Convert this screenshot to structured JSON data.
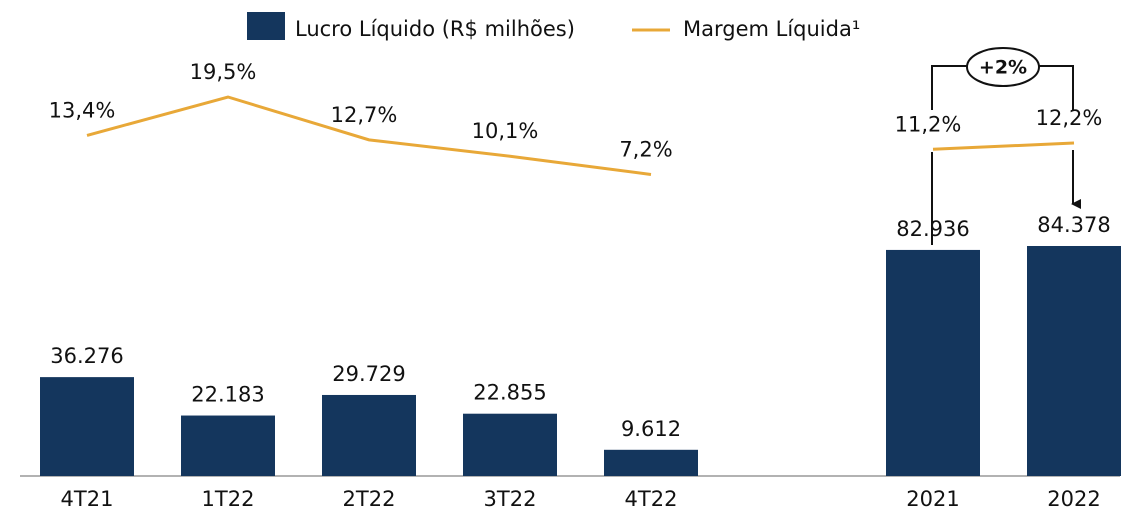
{
  "chart_data": {
    "type": "bar_line",
    "categories": [
      "4T21",
      "1T22",
      "2T22",
      "3T22",
      "4T22",
      null,
      "2021",
      "2022"
    ],
    "series": [
      {
        "name": "Lucro Líquido (R$ milhões)",
        "type": "bar",
        "color": "#14365d",
        "values": [
          36276,
          22183,
          29729,
          22855,
          9612,
          null,
          82936,
          84378
        ],
        "value_labels": [
          "36.276",
          "22.183",
          "29.729",
          "22.855",
          "9.612",
          null,
          "82.936",
          "84.378"
        ]
      },
      {
        "name": "Margem Líquida¹",
        "type": "line",
        "color": "#e8a838",
        "values": [
          13.4,
          19.5,
          12.7,
          10.1,
          7.2,
          null,
          11.2,
          12.2
        ],
        "value_labels": [
          "13,4%",
          "19,5%",
          "12,7%",
          "10,1%",
          "7,2%",
          null,
          "11,2%",
          "12,2%"
        ]
      }
    ],
    "annotation": "+2%"
  }
}
